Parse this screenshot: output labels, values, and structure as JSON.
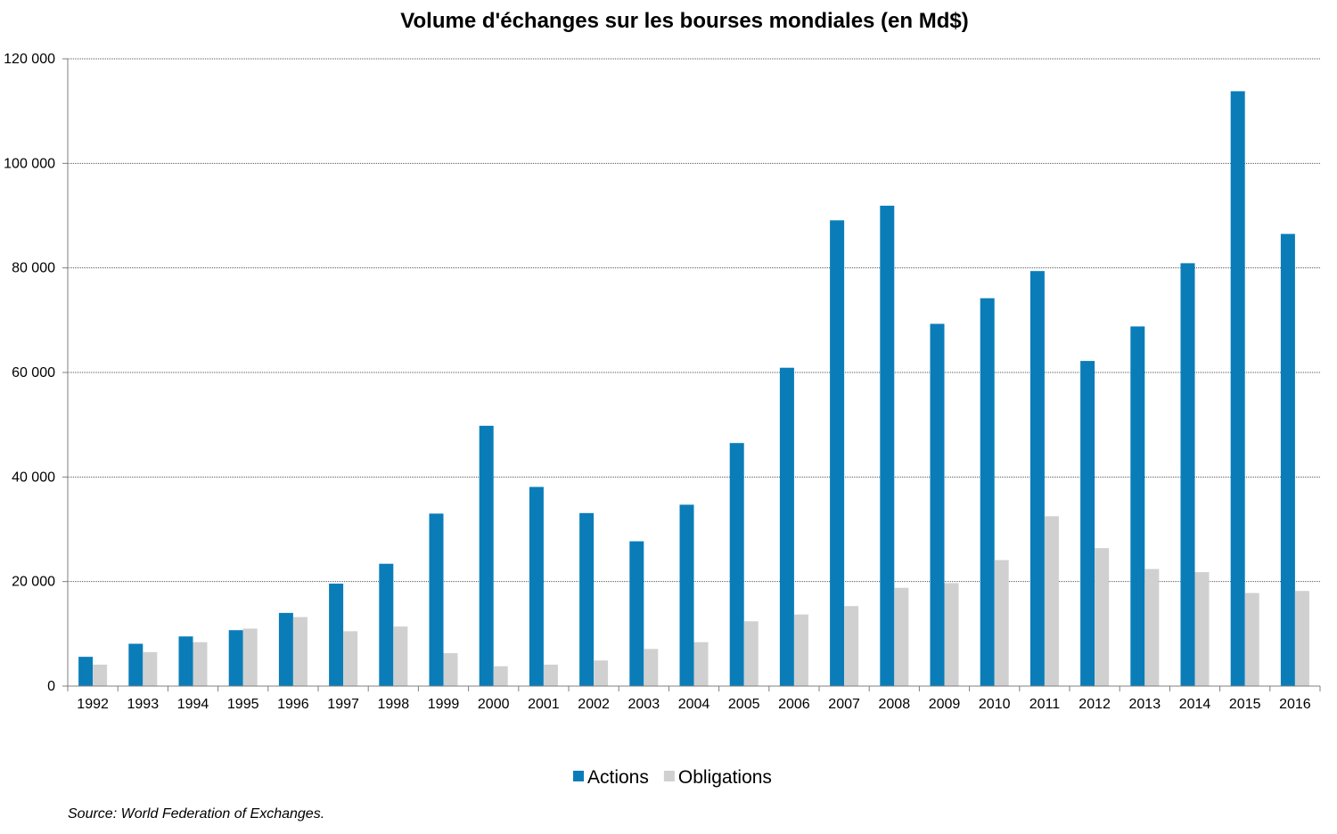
{
  "chart_data": {
    "type": "bar",
    "title": "Volume d'échanges sur les bourses mondiales (en Md$)",
    "source": "Source: World Federation of Exchanges.",
    "categories": [
      "1992",
      "1993",
      "1994",
      "1995",
      "1996",
      "1997",
      "1998",
      "1999",
      "2000",
      "2001",
      "2002",
      "2003",
      "2004",
      "2005",
      "2006",
      "2007",
      "2008",
      "2009",
      "2010",
      "2011",
      "2012",
      "2013",
      "2014",
      "2015",
      "2016"
    ],
    "series": [
      {
        "name": "Actions",
        "color": "#0a7db8",
        "values": [
          5600,
          8100,
          9500,
          10700,
          14000,
          19600,
          23400,
          33000,
          49800,
          38100,
          33100,
          27700,
          34700,
          46500,
          60900,
          89100,
          91900,
          69300,
          74200,
          79400,
          62200,
          68800,
          80900,
          113800,
          86500
        ]
      },
      {
        "name": "Obligations",
        "color": "#d0d0d0",
        "values": [
          4100,
          6500,
          8400,
          11000,
          13200,
          10500,
          11400,
          6300,
          3800,
          4100,
          4900,
          7100,
          8400,
          12400,
          13700,
          15300,
          18800,
          19700,
          24100,
          32500,
          26400,
          22400,
          21800,
          17800,
          18200
        ]
      }
    ],
    "ylim": [
      0,
      120000
    ],
    "yticks": [
      0,
      20000,
      40000,
      60000,
      80000,
      100000,
      120000
    ],
    "ytick_labels": [
      "0",
      "20 000",
      "40 000",
      "60 000",
      "80 000",
      "100 000",
      "120 000"
    ],
    "grid": true,
    "legend_position": "bottom-center"
  }
}
